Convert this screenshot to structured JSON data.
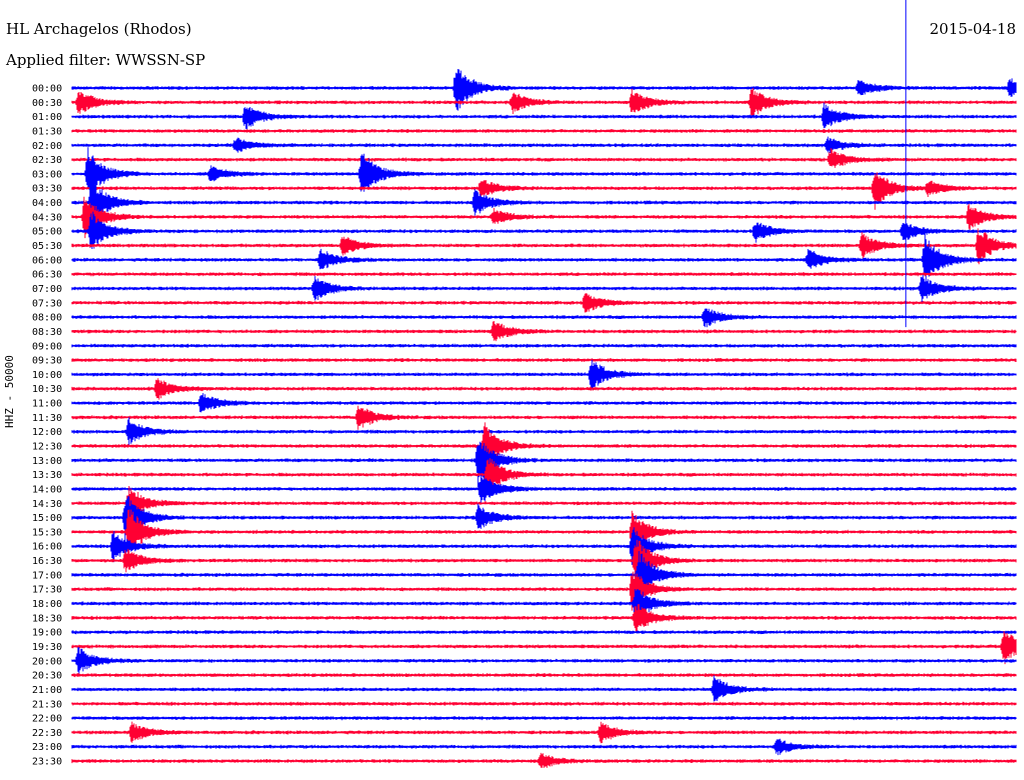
{
  "header": {
    "station": "HL Archagelos (Rhodos)",
    "filter": "Applied filter: WWSSN-SP",
    "date": "2015-04-18",
    "channel": "HHZ - 50000"
  },
  "chart_data": {
    "type": "line",
    "title": "HL Archagelos (Rhodos)",
    "subtitle": "Applied filter: WWSSN-SP",
    "date": "2015-04-18",
    "ylabel": "HHZ - 50000",
    "trace_colors": [
      "#0000ff",
      "#ff0033"
    ],
    "rows": [
      "00:00",
      "00:30",
      "01:00",
      "01:30",
      "02:00",
      "02:30",
      "03:00",
      "03:30",
      "04:00",
      "04:30",
      "05:00",
      "05:30",
      "06:00",
      "06:30",
      "07:00",
      "07:30",
      "08:00",
      "08:30",
      "09:00",
      "09:30",
      "10:00",
      "10:30",
      "11:00",
      "11:30",
      "12:00",
      "12:30",
      "13:00",
      "13:30",
      "14:00",
      "14:30",
      "15:00",
      "15:30",
      "16:00",
      "16:30",
      "17:00",
      "17:30",
      "18:00",
      "18:30",
      "19:00",
      "19:30",
      "20:00",
      "20:30",
      "21:00",
      "21:30",
      "22:00",
      "22:30",
      "23:00",
      "23:30"
    ],
    "row_minutes": 30,
    "events": [
      {
        "row": "00:00",
        "minute": 12.2,
        "amplitude": 1.0
      },
      {
        "row": "00:00",
        "minute": 25.0,
        "amplitude": 0.3
      },
      {
        "row": "00:00",
        "minute": 29.8,
        "amplitude": 0.4
      },
      {
        "row": "00:30",
        "minute": 0.2,
        "amplitude": 0.5
      },
      {
        "row": "00:30",
        "minute": 14.0,
        "amplitude": 0.4
      },
      {
        "row": "00:30",
        "minute": 17.8,
        "amplitude": 0.5
      },
      {
        "row": "00:30",
        "minute": 21.6,
        "amplitude": 0.6
      },
      {
        "row": "01:00",
        "minute": 5.5,
        "amplitude": 0.5
      },
      {
        "row": "01:00",
        "minute": 23.9,
        "amplitude": 0.5
      },
      {
        "row": "02:00",
        "minute": 5.2,
        "amplitude": 0.3
      },
      {
        "row": "02:00",
        "minute": 24.0,
        "amplitude": 0.3
      },
      {
        "row": "02:30",
        "minute": 24.1,
        "amplitude": 0.4
      },
      {
        "row": "03:00",
        "minute": 0.5,
        "amplitude": 1.0
      },
      {
        "row": "03:00",
        "minute": 9.2,
        "amplitude": 0.9
      },
      {
        "row": "03:00",
        "minute": 4.4,
        "amplitude": 0.3
      },
      {
        "row": "03:30",
        "minute": 25.5,
        "amplitude": 0.8
      },
      {
        "row": "03:30",
        "minute": 13.0,
        "amplitude": 0.4
      },
      {
        "row": "03:30",
        "minute": 27.2,
        "amplitude": 0.3
      },
      {
        "row": "04:00",
        "minute": 0.6,
        "amplitude": 1.0
      },
      {
        "row": "04:00",
        "minute": 12.8,
        "amplitude": 0.5
      },
      {
        "row": "04:30",
        "minute": 0.4,
        "amplitude": 0.9
      },
      {
        "row": "04:30",
        "minute": 13.4,
        "amplitude": 0.3
      },
      {
        "row": "04:30",
        "minute": 28.5,
        "amplitude": 0.5
      },
      {
        "row": "05:00",
        "minute": 0.6,
        "amplitude": 0.8
      },
      {
        "row": "05:00",
        "minute": 21.7,
        "amplitude": 0.4
      },
      {
        "row": "05:00",
        "minute": 26.4,
        "amplitude": 0.4
      },
      {
        "row": "05:30",
        "minute": 28.8,
        "amplitude": 0.7
      },
      {
        "row": "05:30",
        "minute": 8.6,
        "amplitude": 0.4
      },
      {
        "row": "05:30",
        "minute": 25.1,
        "amplitude": 0.5
      },
      {
        "row": "06:00",
        "minute": 27.1,
        "amplitude": 1.0
      },
      {
        "row": "06:00",
        "minute": 7.9,
        "amplitude": 0.4
      },
      {
        "row": "06:00",
        "minute": 23.4,
        "amplitude": 0.4
      },
      {
        "row": "07:00",
        "minute": 7.7,
        "amplitude": 0.5
      },
      {
        "row": "07:00",
        "minute": 27.0,
        "amplitude": 0.5
      },
      {
        "row": "07:30",
        "minute": 16.3,
        "amplitude": 0.4
      },
      {
        "row": "08:00",
        "minute": 20.1,
        "amplitude": 0.4
      },
      {
        "row": "08:30",
        "minute": 13.4,
        "amplitude": 0.4
      },
      {
        "row": "10:00",
        "minute": 16.5,
        "amplitude": 0.6
      },
      {
        "row": "10:30",
        "minute": 2.7,
        "amplitude": 0.4
      },
      {
        "row": "11:00",
        "minute": 4.1,
        "amplitude": 0.4
      },
      {
        "row": "11:30",
        "minute": 9.1,
        "amplitude": 0.5
      },
      {
        "row": "12:00",
        "minute": 1.8,
        "amplitude": 0.5
      },
      {
        "row": "12:30",
        "minute": 13.1,
        "amplitude": 0.9
      },
      {
        "row": "13:00",
        "minute": 12.9,
        "amplitude": 1.0
      },
      {
        "row": "13:30",
        "minute": 13.2,
        "amplitude": 0.8
      },
      {
        "row": "14:00",
        "minute": 13.0,
        "amplitude": 0.6
      },
      {
        "row": "14:30",
        "minute": 1.8,
        "amplitude": 0.7
      },
      {
        "row": "15:00",
        "minute": 1.7,
        "amplitude": 1.0
      },
      {
        "row": "15:00",
        "minute": 12.9,
        "amplitude": 0.5
      },
      {
        "row": "15:30",
        "minute": 1.8,
        "amplitude": 1.0
      },
      {
        "row": "15:30",
        "minute": 17.8,
        "amplitude": 0.8
      },
      {
        "row": "16:00",
        "minute": 1.3,
        "amplitude": 0.6
      },
      {
        "row": "16:00",
        "minute": 17.8,
        "amplitude": 0.8
      },
      {
        "row": "16:30",
        "minute": 17.9,
        "amplitude": 1.0
      },
      {
        "row": "16:30",
        "minute": 1.7,
        "amplitude": 0.5
      },
      {
        "row": "17:00",
        "minute": 18.0,
        "amplitude": 1.0
      },
      {
        "row": "17:30",
        "minute": 17.8,
        "amplitude": 0.8
      },
      {
        "row": "18:00",
        "minute": 17.9,
        "amplitude": 0.7
      },
      {
        "row": "18:30",
        "minute": 17.9,
        "amplitude": 0.6
      },
      {
        "row": "19:30",
        "minute": 29.6,
        "amplitude": 0.7
      },
      {
        "row": "20:00",
        "minute": 0.2,
        "amplitude": 0.5
      },
      {
        "row": "21:00",
        "minute": 20.4,
        "amplitude": 0.5
      },
      {
        "row": "22:30",
        "minute": 1.9,
        "amplitude": 0.4
      },
      {
        "row": "22:30",
        "minute": 16.8,
        "amplitude": 0.4
      },
      {
        "row": "23:00",
        "minute": 22.4,
        "amplitude": 0.3
      },
      {
        "row": "23:30",
        "minute": 14.9,
        "amplitude": 0.3
      }
    ],
    "marker_line": {
      "row_from": "00:00",
      "row_to": "08:00",
      "minute": 26.5
    }
  }
}
